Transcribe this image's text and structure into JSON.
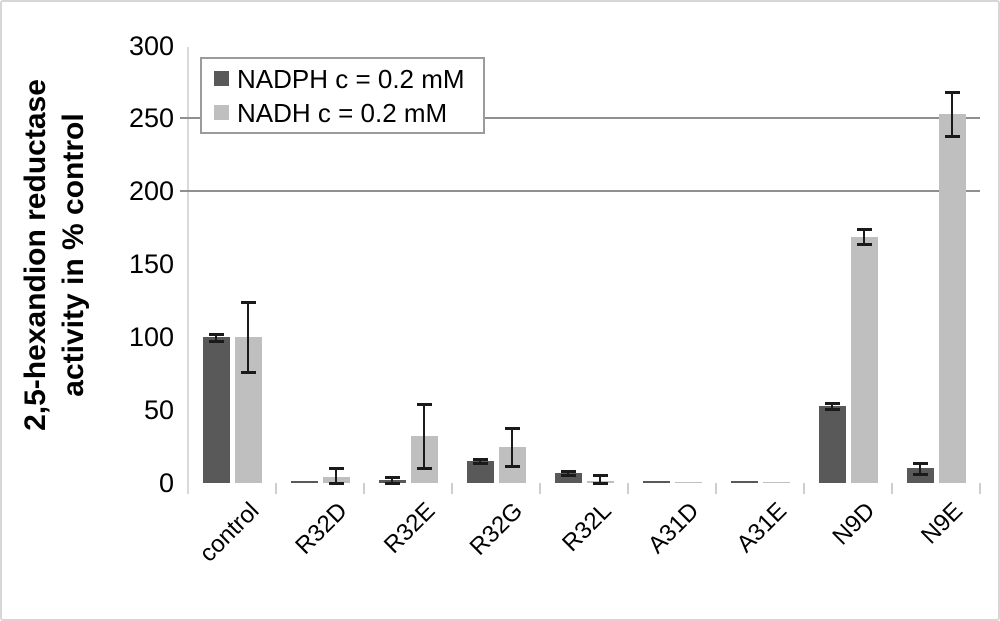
{
  "chart_data": {
    "type": "bar",
    "title": "",
    "ylabel": "2,5-hexandion reductase activity in % control",
    "ylabel_lines": [
      "2,5-hexandion reductase",
      "activity in % control"
    ],
    "categories": [
      "control",
      "R32D",
      "R32E",
      "R32G",
      "R32L",
      "A31D",
      "A31E",
      "N9D",
      "N9E"
    ],
    "series": [
      {
        "name": "NADPH c = 0.2 mM",
        "color": "#595959",
        "values": [
          100,
          1.5,
          2,
          15,
          7,
          1.5,
          1.5,
          53,
          10
        ],
        "errors": [
          2.5,
          null,
          2,
          1.5,
          1.5,
          null,
          null,
          2,
          3.5
        ]
      },
      {
        "name": "NADH c = 0.2 mM",
        "color": "#bfbfbf",
        "values": [
          100,
          4,
          32,
          25,
          1.5,
          1,
          1,
          169,
          253
        ],
        "errors": [
          24,
          6,
          22,
          13,
          4,
          null,
          null,
          5,
          15
        ]
      }
    ],
    "ylim": [
      0,
      300
    ],
    "yticks": [
      0,
      50,
      100,
      150,
      200,
      250,
      300
    ],
    "gridlines": [
      200,
      250
    ],
    "grid_color": "#8f8f8f",
    "axis_color": "#d9d9d9",
    "error_color": "#1a1a1a",
    "legend_position": "top-left",
    "legend_border_color": "#9b9b9b"
  }
}
